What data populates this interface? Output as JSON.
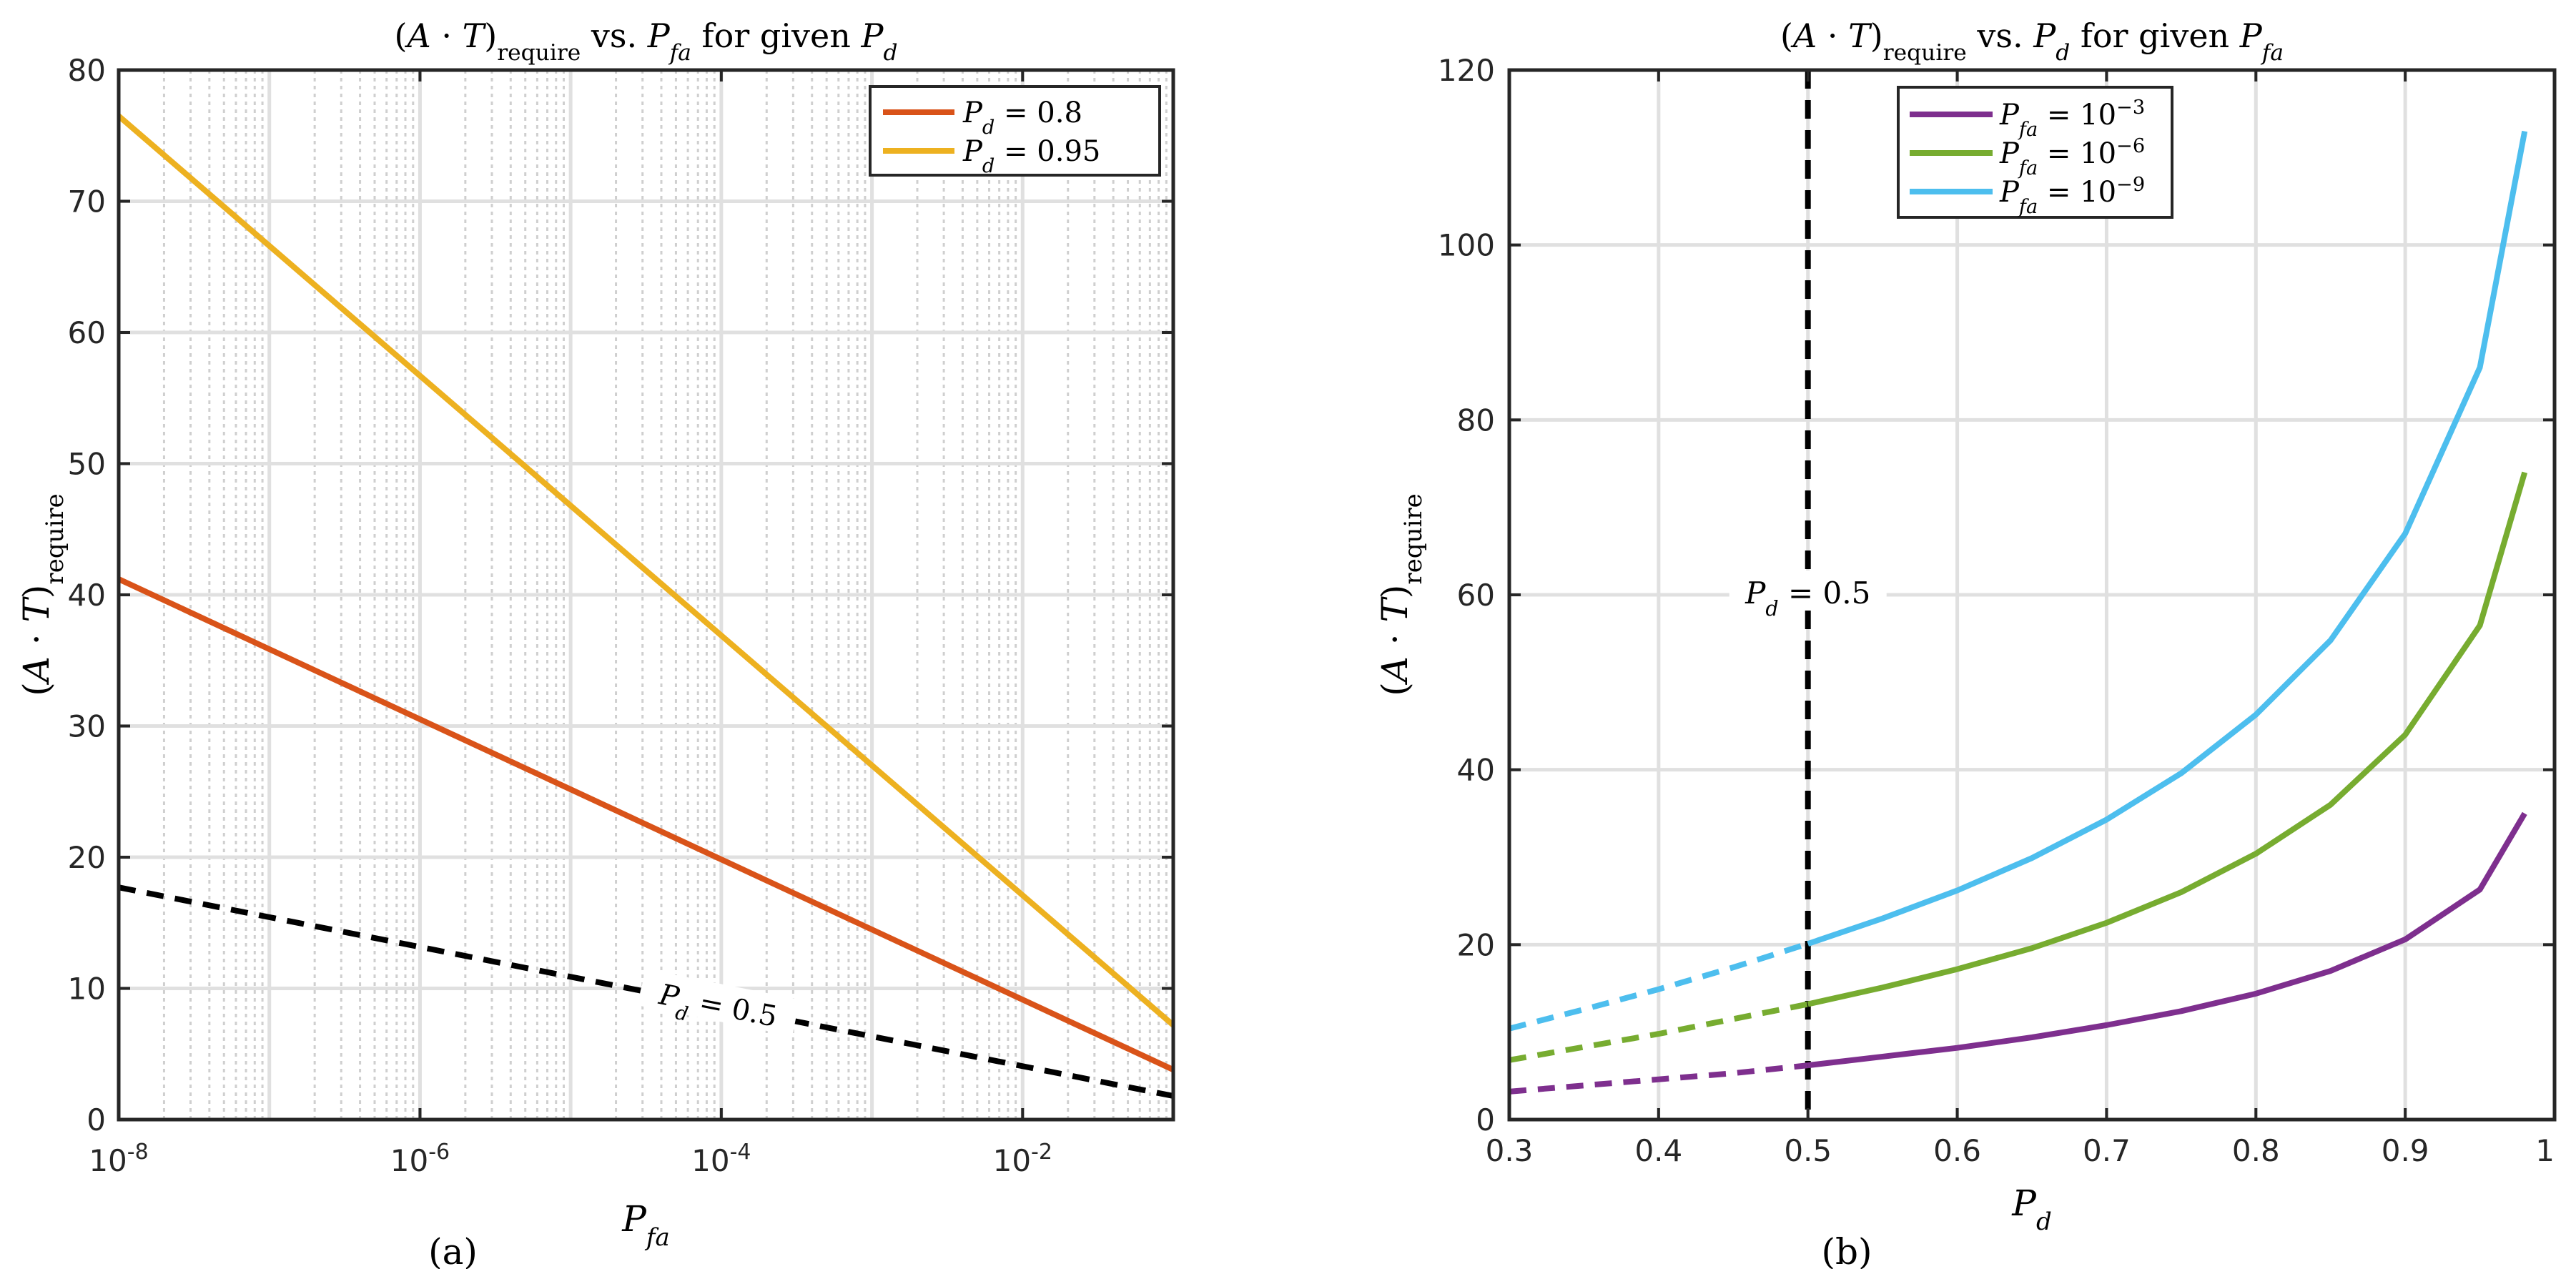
{
  "chart_data": [
    {
      "type": "line",
      "panel_label": "(a)",
      "title": {
        "prefix": "(A·T)",
        "sub": "require",
        "mid": " vs. P",
        "mid_sub": "fa",
        "suffix": " for given P",
        "suffix_sub": "d"
      },
      "xlabel": {
        "main": "P",
        "sub": "fa"
      },
      "ylabel": {
        "main": "(A·T)",
        "sub": "require"
      },
      "xscale": "log",
      "xlim": [
        1e-08,
        0.1
      ],
      "ylim": [
        0,
        80
      ],
      "x_tick_labels": [
        {
          "x": 1e-08,
          "base": "10",
          "exp": "-8"
        },
        {
          "x": 1e-06,
          "base": "10",
          "exp": "-6"
        },
        {
          "x": 0.0001,
          "base": "10",
          "exp": "-4"
        },
        {
          "x": 0.01,
          "base": "10",
          "exp": "-2"
        }
      ],
      "y_ticks": [
        "0",
        "10",
        "20",
        "30",
        "40",
        "50",
        "60",
        "70",
        "80"
      ],
      "grid": true,
      "legend_position": "top-right",
      "series": [
        {
          "name": "P_d = 0.8",
          "label_main": "P",
          "label_sub": "d",
          "label_rest": " = 0.8",
          "color": "#D95319",
          "style": "solid",
          "x": [
            1e-08,
            0.1
          ],
          "y": [
            41.2,
            3.8
          ]
        },
        {
          "name": "P_d = 0.95",
          "label_main": "P",
          "label_sub": "d",
          "label_rest": " = 0.95",
          "color": "#EDB120",
          "style": "solid",
          "x": [
            1e-08,
            0.1
          ],
          "y": [
            76.5,
            7.2
          ]
        },
        {
          "name": "P_d = 0.5",
          "color": "#000000",
          "style": "dashed",
          "in_legend": false,
          "x": [
            1e-08,
            0.1
          ],
          "y": [
            17.7,
            1.8
          ]
        }
      ],
      "annotations": [
        {
          "main": "P",
          "sub": "d",
          "rest": " = 0.5",
          "x": 0.0001,
          "y": 8.5
        }
      ]
    },
    {
      "type": "line",
      "panel_label": "(b)",
      "title": {
        "prefix": "(A·T)",
        "sub": "require",
        "mid": " vs. P",
        "mid_sub": "d",
        "suffix": " for given P",
        "suffix_sub": "fa"
      },
      "xlabel": {
        "main": "P",
        "sub": "d"
      },
      "ylabel": {
        "main": "(A·T)",
        "sub": "require"
      },
      "xscale": "linear",
      "xlim": [
        0.3,
        1.0
      ],
      "ylim": [
        0,
        120
      ],
      "x_ticks": [
        "0.3",
        "0.4",
        "0.5",
        "0.6",
        "0.7",
        "0.8",
        "0.9",
        "1"
      ],
      "y_ticks": [
        "0",
        "20",
        "40",
        "60",
        "80",
        "100",
        "120"
      ],
      "grid": true,
      "legend_position": "top-center",
      "vertical_line": {
        "x": 0.5,
        "style": "dashed",
        "color": "#000000"
      },
      "series": [
        {
          "name": "P_fa = 10^-3",
          "label_main": "P",
          "label_sub": "fa",
          "label_rest": " = 10",
          "label_exp": "−3",
          "color": "#7E2F8E",
          "x": [
            0.3,
            0.35,
            0.4,
            0.45,
            0.5,
            0.55,
            0.6,
            0.65,
            0.7,
            0.75,
            0.8,
            0.85,
            0.9,
            0.95,
            0.98
          ],
          "y": [
            3.2,
            3.9,
            4.6,
            5.3,
            6.2,
            7.2,
            8.2,
            9.4,
            10.8,
            12.4,
            14.4,
            17.0,
            20.6,
            26.3,
            35.0
          ]
        },
        {
          "name": "P_fa = 10^-6",
          "label_main": "P",
          "label_sub": "fa",
          "label_rest": " = 10",
          "label_exp": "−6",
          "color": "#77AC30",
          "x": [
            0.3,
            0.35,
            0.4,
            0.45,
            0.5,
            0.55,
            0.6,
            0.65,
            0.7,
            0.75,
            0.8,
            0.85,
            0.9,
            0.95,
            0.98
          ],
          "y": [
            6.8,
            8.3,
            9.8,
            11.5,
            13.2,
            15.1,
            17.2,
            19.6,
            22.5,
            26.0,
            30.4,
            36.0,
            44.0,
            56.5,
            74.0
          ]
        },
        {
          "name": "P_fa = 10^-9",
          "label_main": "P",
          "label_sub": "fa",
          "label_rest": " = 10",
          "label_exp": "−9",
          "color": "#4DBEEE",
          "x": [
            0.3,
            0.35,
            0.4,
            0.45,
            0.5,
            0.55,
            0.6,
            0.65,
            0.7,
            0.75,
            0.8,
            0.85,
            0.9,
            0.95,
            0.98
          ],
          "y": [
            10.4,
            12.6,
            14.9,
            17.4,
            20.1,
            23.0,
            26.2,
            29.9,
            34.3,
            39.6,
            46.3,
            54.8,
            67.0,
            86.0,
            113.0
          ]
        }
      ],
      "dashed_below_x": 0.5,
      "annotations": [
        {
          "main": "P",
          "sub": "d",
          "rest": " = 0.5",
          "x": 0.5,
          "y": 60
        }
      ]
    }
  ]
}
